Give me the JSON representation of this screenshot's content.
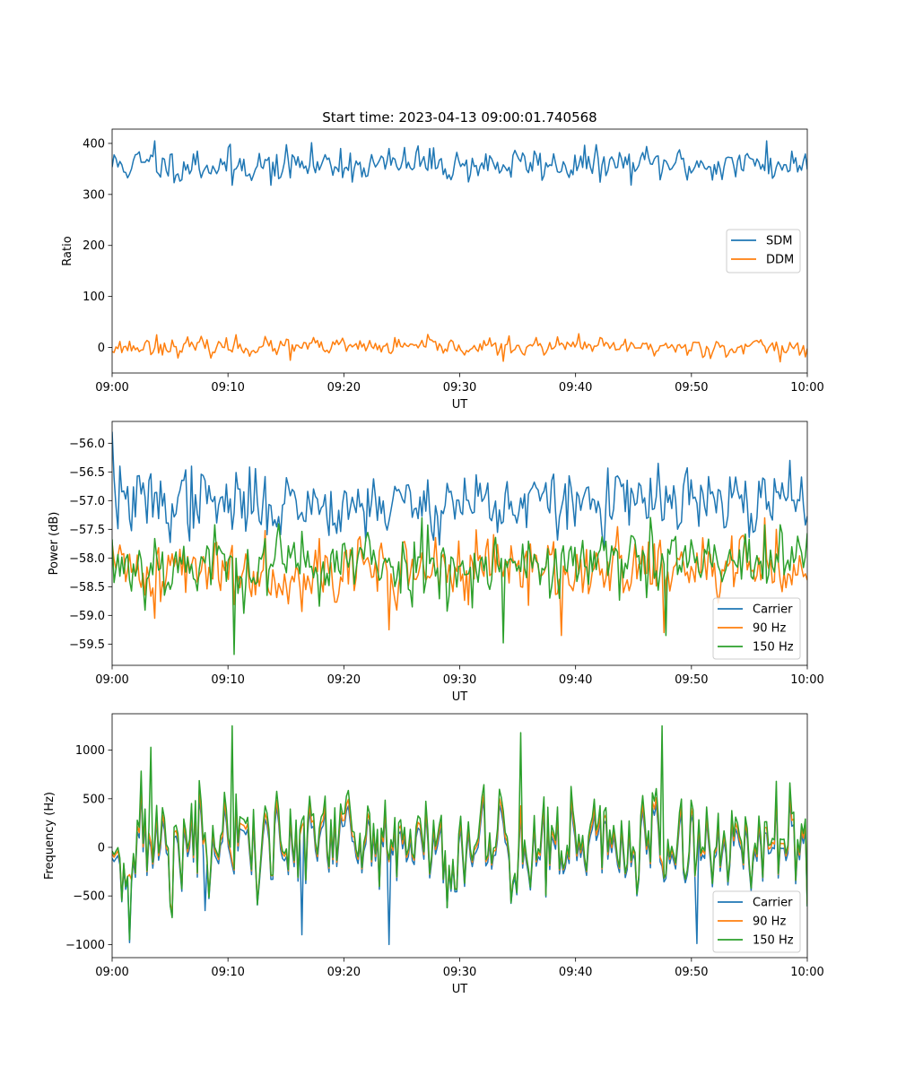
{
  "figure": {
    "title": "Start time: 2023-04-13 09:00:01.740568"
  },
  "chart_data": [
    {
      "type": "line",
      "xlabel": "UT",
      "ylabel": "Ratio",
      "xticks": [
        "09:00",
        "09:10",
        "09:20",
        "09:30",
        "09:40",
        "09:50",
        "10:00"
      ],
      "xlim_minutes": [
        0,
        60
      ],
      "ylim": [
        -50,
        428
      ],
      "yticks": [
        0,
        100,
        200,
        300,
        400
      ],
      "ytick_labels": [
        "0",
        "100",
        "200",
        "300",
        "400"
      ],
      "legend_position": "center-right",
      "series": [
        {
          "name": "SDM",
          "color": "#1f77b4",
          "mean": 358,
          "noise": 16,
          "seed": 11,
          "x_minutes": [
            3.6,
            7.3,
            10.4,
            13.7,
            19.7,
            26.4,
            36.4,
            56.5
          ],
          "y": [
            405,
            385,
            318,
            318,
            390,
            395,
            385,
            405
          ]
        },
        {
          "name": "DDM",
          "color": "#ff7f0e",
          "mean": 1,
          "noise": 8,
          "seed": 23,
          "x_minutes": [
            3.9,
            10.7,
            15.3,
            33.7,
            40.2,
            49.6,
            57.6
          ],
          "y": [
            25,
            25,
            -25,
            -27,
            27,
            -15,
            -28
          ]
        }
      ]
    },
    {
      "type": "line",
      "xlabel": "UT",
      "ylabel": "Power (dB)",
      "xticks": [
        "09:00",
        "09:10",
        "09:20",
        "09:30",
        "09:40",
        "09:50",
        "10:00"
      ],
      "xlim_minutes": [
        0,
        60
      ],
      "ylim": [
        -59.87,
        -55.62
      ],
      "yticks": [
        -56.0,
        -56.5,
        -57.0,
        -57.5,
        -58.0,
        -58.5,
        -59.0,
        -59.5
      ],
      "ytick_labels": [
        "−56.0",
        "−56.5",
        "−57.0",
        "−57.5",
        "−58.0",
        "−58.5",
        "−59.0",
        "−59.5"
      ],
      "legend_position": "lower right",
      "series": [
        {
          "name": "Carrier",
          "color": "#1f77b4",
          "mean": -57.05,
          "noise": 0.28,
          "seed": 37,
          "x_minutes": [
            0.05,
            0.6,
            6.8,
            10.3,
            31.5,
            49.3,
            58.5
          ],
          "y": [
            -55.8,
            -56.4,
            -56.4,
            -57.5,
            -56.55,
            -56.75,
            -56.3
          ]
        },
        {
          "name": "90 Hz",
          "color": "#ff7f0e",
          "mean": -58.2,
          "noise": 0.28,
          "seed": 41,
          "x_minutes": [
            3.6,
            23.9,
            38.8,
            47.7,
            56.4
          ],
          "y": [
            -59.05,
            -59.25,
            -59.35,
            -59.3,
            -57.3
          ]
        },
        {
          "name": "150 Hz",
          "color": "#2ca02c",
          "mean": -58.1,
          "noise": 0.3,
          "seed": 53,
          "x_minutes": [
            10.5,
            33.8,
            26.8,
            47.8
          ],
          "y": [
            -59.68,
            -59.48,
            -57.3,
            -59.35
          ]
        }
      ]
    },
    {
      "type": "line",
      "xlabel": "UT",
      "ylabel": "Frequency (Hz)",
      "xticks": [
        "09:00",
        "09:10",
        "09:20",
        "09:30",
        "09:40",
        "09:50",
        "10:00"
      ],
      "xlim_minutes": [
        0,
        60
      ],
      "ylim": [
        -1135,
        1375
      ],
      "yticks": [
        -1000,
        -500,
        0,
        500,
        1000
      ],
      "ytick_labels": [
        "−1000",
        "−500",
        "0",
        "500",
        "1000"
      ],
      "legend_position": "lower right",
      "series": [
        {
          "name": "Carrier",
          "color": "#1f77b4",
          "mean": -30,
          "noise": 260,
          "seed": 71,
          "x_minutes": [
            1.5,
            8.0,
            16.3,
            23.9,
            50.4
          ],
          "y": [
            -980,
            -650,
            -900,
            -1000,
            -990
          ]
        },
        {
          "name": "90 Hz",
          "color": "#ff7f0e",
          "mean": 20,
          "noise": 270,
          "seed": 71,
          "x_minutes": [],
          "y": []
        },
        {
          "name": "150 Hz",
          "color": "#2ca02c",
          "mean": 60,
          "noise": 300,
          "seed": 71,
          "x_minutes": [
            10.4,
            3.4,
            35.3,
            47.5,
            1.5
          ],
          "y": [
            1250,
            1030,
            1180,
            1250,
            -950
          ]
        }
      ]
    }
  ]
}
